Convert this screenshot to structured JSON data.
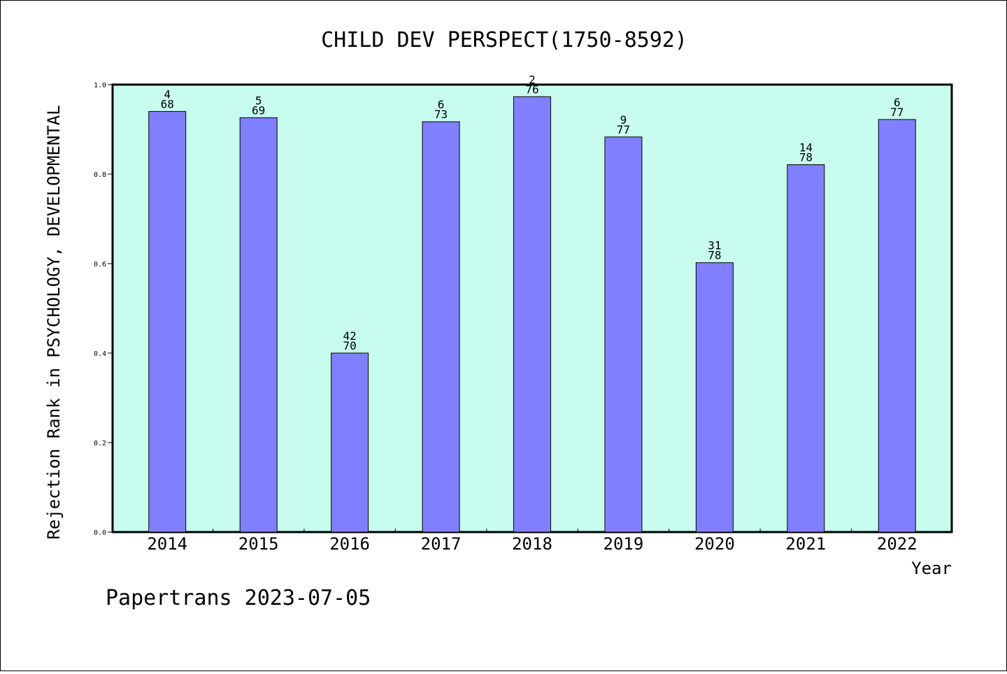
{
  "chart_data": {
    "type": "bar",
    "title": "CHILD DEV PERSPECT(1750-8592)",
    "xlabel": "Year",
    "ylabel": "Rejection Rank in PSYCHOLOGY, DEVELOPMENTAL",
    "categories": [
      "2014",
      "2015",
      "2016",
      "2017",
      "2018",
      "2019",
      "2020",
      "2021",
      "2022"
    ],
    "values": [
      0.94,
      0.926,
      0.4,
      0.917,
      0.973,
      0.883,
      0.602,
      0.821,
      0.922
    ],
    "bar_labels_top": [
      "4",
      "5",
      "42",
      "6",
      "2",
      "9",
      "31",
      "14",
      "6"
    ],
    "bar_labels_bottom": [
      "68",
      "69",
      "70",
      "73",
      "76",
      "77",
      "78",
      "78",
      "77"
    ],
    "ylim": [
      0.0,
      1.0
    ],
    "yticks": [
      "0.0",
      "0.2",
      "0.4",
      "0.6",
      "0.8",
      "1.0"
    ],
    "grid": false,
    "legend": "none",
    "colors": {
      "bar_fill": "#8080ff",
      "bar_stroke": "#000000",
      "plot_background": "#c8fcee"
    }
  },
  "footer": {
    "text": "Papertrans 2023-07-05"
  }
}
